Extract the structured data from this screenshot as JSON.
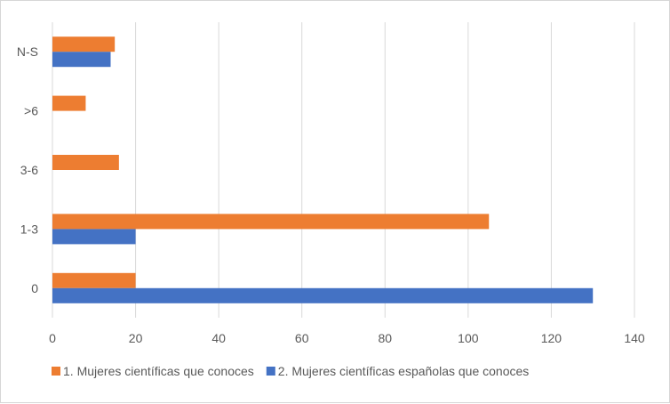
{
  "chart_data": {
    "type": "bar",
    "orientation": "horizontal",
    "categories": [
      "0",
      "1-3",
      "3-6",
      ">6",
      "N-S"
    ],
    "series": [
      {
        "name": "1. Mujeres científicas que conoces",
        "color": "#ED7D31",
        "values": [
          20,
          105,
          16,
          8,
          15
        ]
      },
      {
        "name": "2. Mujeres científicas españolas que conoces",
        "color": "#4472C4",
        "values": [
          130,
          20,
          0,
          0,
          14
        ]
      }
    ],
    "xlim": [
      0,
      140
    ],
    "xticks": [
      0,
      20,
      40,
      60,
      80,
      100,
      120,
      140
    ],
    "grid": "vertical",
    "legend_position": "bottom"
  }
}
